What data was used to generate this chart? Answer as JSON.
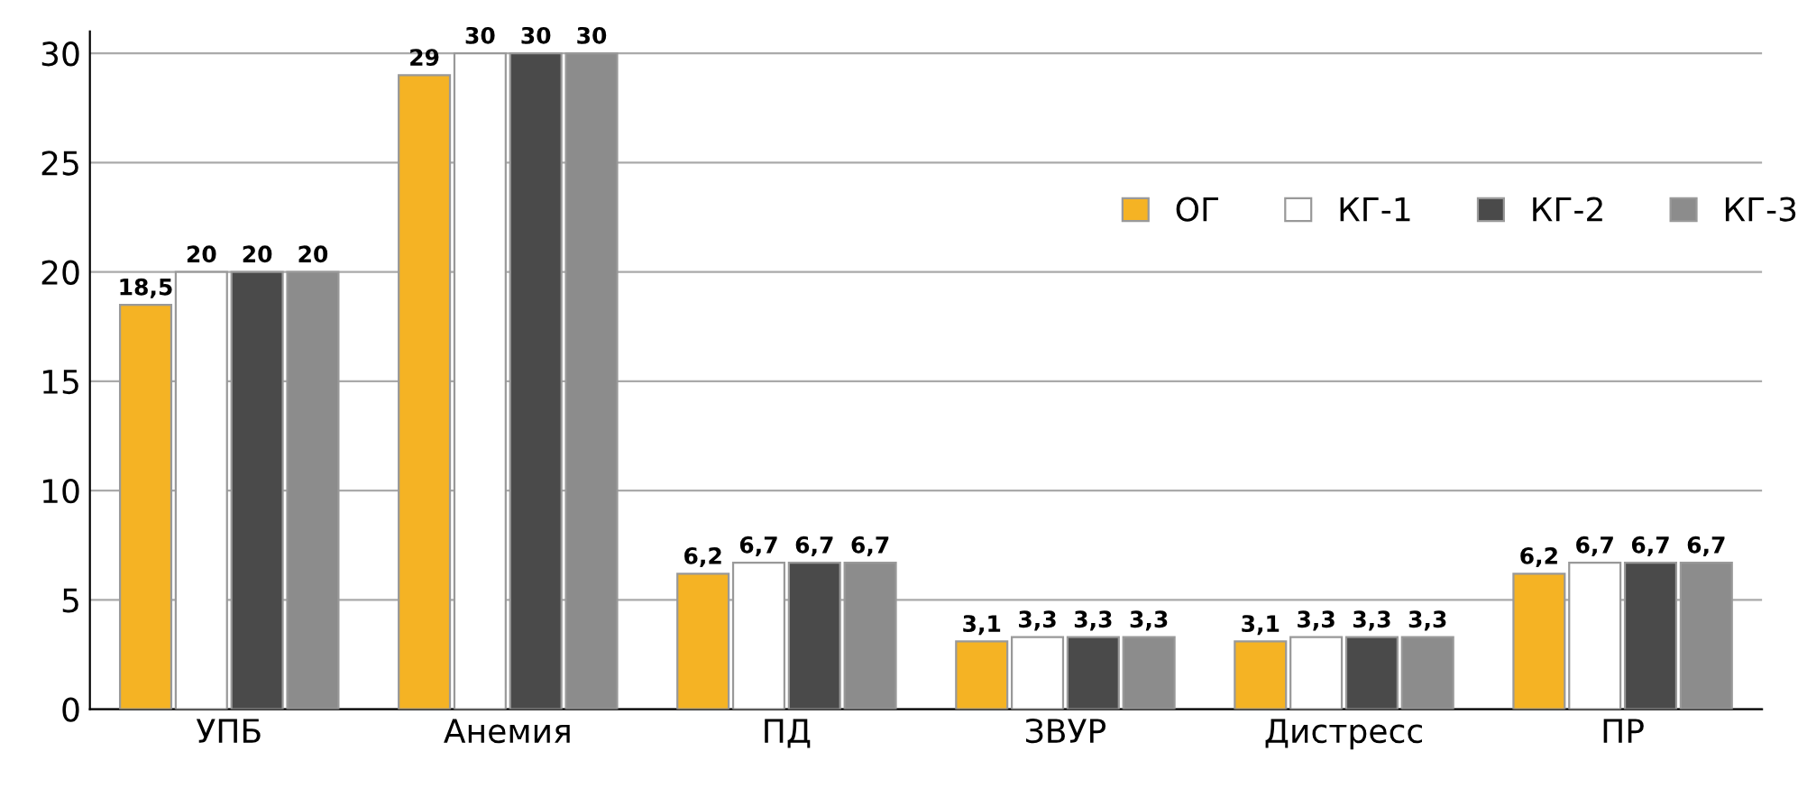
{
  "chart_data": {
    "type": "bar",
    "categories": [
      "УПБ",
      "Анемия",
      "ПД",
      "ЗВУР",
      "Дистресс",
      "ПР"
    ],
    "series": [
      {
        "name": "ОГ",
        "color": "#f5b324",
        "values": [
          18.5,
          29,
          6.2,
          3.1,
          3.1,
          6.2
        ],
        "value_labels": [
          "18,5",
          "29",
          "6,2",
          "3,1",
          "3,1",
          "6,2"
        ]
      },
      {
        "name": "КГ-1",
        "color": "#ffffff",
        "values": [
          20,
          30,
          6.7,
          3.3,
          3.3,
          6.7
        ],
        "value_labels": [
          "20",
          "30",
          "6,7",
          "3,3",
          "3,3",
          "6,7"
        ]
      },
      {
        "name": "КГ-2",
        "color": "#4a4a4a",
        "values": [
          20,
          30,
          6.7,
          3.3,
          3.3,
          6.7
        ],
        "value_labels": [
          "20",
          "30",
          "6,7",
          "3,3",
          "3,3",
          "6,7"
        ]
      },
      {
        "name": "КГ-3",
        "color": "#8c8c8c",
        "values": [
          20,
          30,
          6.7,
          3.3,
          3.3,
          6.7
        ],
        "value_labels": [
          "20",
          "30",
          "6,7",
          "3,3",
          "3,3",
          "6,7"
        ]
      }
    ],
    "ylim": [
      0,
      31
    ],
    "yticks": [
      0,
      5,
      10,
      15,
      20,
      25,
      30
    ],
    "grid": "y",
    "legend": "top right"
  }
}
